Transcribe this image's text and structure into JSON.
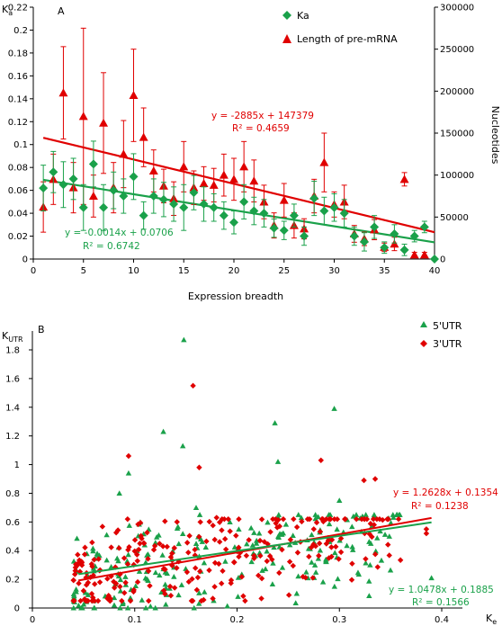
{
  "colors": {
    "ka": "#1aa14a",
    "premrna": "#e00000",
    "utr5": "#1aa14a",
    "utr3": "#e00000",
    "axis": "#000000"
  },
  "chart_data": [
    {
      "panel_label": "A",
      "type": "scatter",
      "xlabel": "Expression breadth",
      "ylabel_left": "K",
      "ylabel_left_sub": "a",
      "ylabel_right": "Nucleotides",
      "xlim": [
        0,
        40
      ],
      "ylim_left": [
        0,
        0.22
      ],
      "ylim_right": [
        0,
        300000
      ],
      "x_ticks": [
        "0",
        "5",
        "10",
        "15",
        "20",
        "25",
        "30",
        "35",
        "40"
      ],
      "y_left_ticks": [
        "0",
        "0.02",
        "0.04",
        "0.06",
        "0.08",
        "0.1",
        "0.12",
        "0.14",
        "0.16",
        "0.18",
        "0.2",
        "0.22"
      ],
      "y_right_ticks": [
        "0",
        "50000",
        "100000",
        "150000",
        "200000",
        "250000",
        "300000"
      ],
      "legend": {
        "position": "top-right",
        "entries": [
          "Ka",
          "Length of pre-mRNA"
        ]
      },
      "series": [
        {
          "name": "Ka",
          "marker": "diamond",
          "axis": "left",
          "x": [
            1,
            2,
            3,
            4,
            5,
            6,
            7,
            8,
            9,
            10,
            11,
            12,
            13,
            14,
            15,
            16,
            17,
            18,
            19,
            20,
            21,
            22,
            23,
            24,
            25,
            26,
            27,
            28,
            29,
            30,
            31,
            32,
            33,
            34,
            35,
            36,
            37,
            38,
            39,
            40
          ],
          "y": [
            0.062,
            0.076,
            0.065,
            0.07,
            0.045,
            0.083,
            0.045,
            0.06,
            0.055,
            0.072,
            0.038,
            0.055,
            0.052,
            0.048,
            0.045,
            0.058,
            0.048,
            0.045,
            0.038,
            0.032,
            0.05,
            0.042,
            0.04,
            0.027,
            0.025,
            0.038,
            0.02,
            0.053,
            0.042,
            0.045,
            0.04,
            0.02,
            0.015,
            0.028,
            0.01,
            0.022,
            0.008,
            0.02,
            0.028,
            0.0
          ],
          "err": [
            0.02,
            0.018,
            0.02,
            0.018,
            0.02,
            0.02,
            0.02,
            0.016,
            0.015,
            0.02,
            0.012,
            0.015,
            0.015,
            0.015,
            0.02,
            0.015,
            0.015,
            0.012,
            0.012,
            0.01,
            0.015,
            0.012,
            0.012,
            0.008,
            0.008,
            0.01,
            0.008,
            0.015,
            0.012,
            0.012,
            0.012,
            0.008,
            0.008,
            0.01,
            0.005,
            0.008,
            0.005,
            0.005,
            0.005,
            0.0
          ]
        },
        {
          "name": "Length of pre-mRNA",
          "marker": "triangle",
          "axis": "right",
          "x": [
            1,
            2,
            3,
            4,
            5,
            6,
            7,
            8,
            9,
            10,
            11,
            12,
            13,
            14,
            15,
            16,
            17,
            18,
            19,
            20,
            21,
            22,
            23,
            24,
            25,
            26,
            27,
            28,
            29,
            30,
            31,
            32,
            33,
            34,
            35,
            36,
            37,
            38,
            39
          ],
          "y": [
            62000,
            95000,
            198000,
            85000,
            170000,
            75000,
            162000,
            85000,
            125000,
            195000,
            145000,
            105000,
            87000,
            72000,
            110000,
            85000,
            90000,
            88000,
            100000,
            95000,
            110000,
            93000,
            68000,
            40000,
            70000,
            40000,
            36000,
            75000,
            115000,
            65000,
            68000,
            30000,
            24000,
            35000,
            14000,
            18000,
            95000,
            5000,
            5000
          ],
          "err": [
            30000,
            30000,
            55000,
            30000,
            105000,
            25000,
            60000,
            30000,
            40000,
            55000,
            35000,
            25000,
            20000,
            20000,
            30000,
            20000,
            20000,
            20000,
            25000,
            25000,
            30000,
            25000,
            20000,
            15000,
            20000,
            15000,
            12000,
            20000,
            35000,
            15000,
            20000,
            10000,
            8000,
            12000,
            5000,
            8000,
            8000,
            3000,
            3000
          ]
        }
      ],
      "trendlines": [
        {
          "series": "Length of pre-mRNA",
          "slope": -2885,
          "intercept": 147379,
          "equation": "y = -2885x + 147379",
          "r2": "R² = 0.4659"
        },
        {
          "series": "Ka",
          "slope": -0.0014,
          "intercept": 0.0706,
          "equation": "y = -0.0014x + 0.0706",
          "r2": "R² = 0.6742"
        }
      ]
    },
    {
      "panel_label": "B",
      "type": "scatter",
      "xlabel": "K",
      "xlabel_sub": "e",
      "ylabel": "K",
      "ylabel_sub": "UTR",
      "xlim": [
        0,
        0.45
      ],
      "ylim": [
        0,
        2.0
      ],
      "x_ticks": [
        "0",
        "0.1",
        "0.2",
        "0.3",
        "0.4"
      ],
      "y_ticks": [
        "0",
        "0.2",
        "0.4",
        "0.6",
        "0.8",
        "1",
        "1.2",
        "1.4",
        "1.6",
        "1.8"
      ],
      "legend": {
        "position": "top-right",
        "entries": [
          "5'UTR",
          "3'UTR"
        ]
      },
      "series": [
        {
          "name": "5'UTR",
          "marker": "triangle",
          "highlighted_points": {
            "x": [
              0.148,
              0.147,
              0.295,
              0.237,
              0.094,
              0.085,
              0.128,
              0.24,
              0.16,
              0.3,
              0.39,
              0.26,
              0.06,
              0.08,
              0.33
            ],
            "y": [
              1.87,
              1.13,
              1.39,
              1.29,
              0.94,
              0.8,
              1.23,
              1.02,
              0.7,
              0.75,
              0.21,
              0.65,
              0.05,
              0.02,
              0.3
            ]
          },
          "cloud": {
            "count": 230,
            "x_range": [
              0.04,
              0.36
            ],
            "y_range": [
              0.0,
              0.65
            ]
          }
        },
        {
          "name": "3'UTR",
          "marker": "diamond",
          "highlighted_points": {
            "x": [
              0.157,
              0.094,
              0.282,
              0.163,
              0.335,
              0.324,
              0.385,
              0.385,
              0.05,
              0.18
            ],
            "y": [
              1.55,
              1.06,
              1.03,
              0.98,
              0.9,
              0.89,
              0.55,
              0.52,
              0.12,
              0.63
            ]
          },
          "cloud": {
            "count": 260,
            "x_range": [
              0.04,
              0.36
            ],
            "y_range": [
              0.05,
              0.62
            ]
          }
        }
      ],
      "trendlines": [
        {
          "series": "3'UTR",
          "slope": 1.2628,
          "intercept": 0.1354,
          "equation": "y = 1.2628x + 0.1354",
          "r2": "R² = 0.1238"
        },
        {
          "series": "5'UTR",
          "slope": 1.0478,
          "intercept": 0.1885,
          "equation": "y = 1.0478x + 0.1885",
          "r2": "R² = 0.1566"
        }
      ]
    }
  ]
}
